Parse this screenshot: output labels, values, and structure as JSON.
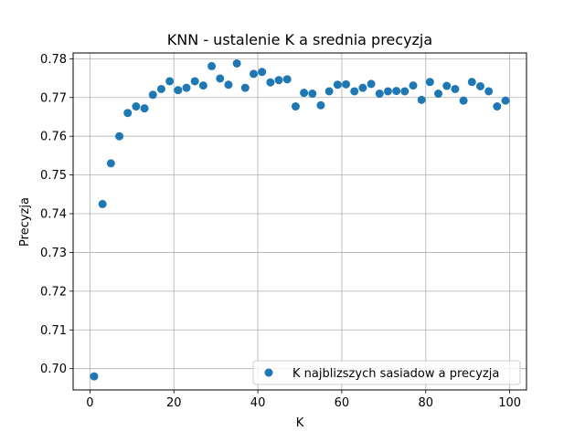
{
  "chart_data": {
    "type": "scatter",
    "title": "KNN - ustalenie K a srednia precyzja",
    "xlabel": "K",
    "ylabel": "Precyzja",
    "xlim": [
      -4,
      104
    ],
    "ylim": [
      0.6945,
      0.7815
    ],
    "xticks": [
      0,
      20,
      40,
      60,
      80,
      100
    ],
    "xtick_labels": [
      "0",
      "20",
      "40",
      "60",
      "80",
      "100"
    ],
    "yticks": [
      0.7,
      0.71,
      0.72,
      0.73,
      0.74,
      0.75,
      0.76,
      0.77,
      0.78
    ],
    "ytick_labels": [
      "0.70",
      "0.71",
      "0.72",
      "0.73",
      "0.74",
      "0.75",
      "0.76",
      "0.77",
      "0.78"
    ],
    "grid": true,
    "legend_position": "lower-right",
    "marker_color": "#1f77b4",
    "series": [
      {
        "name": "K najblizszych sasiadow a precyzja",
        "x": [
          1,
          3,
          5,
          7,
          9,
          11,
          13,
          15,
          17,
          19,
          21,
          23,
          25,
          27,
          29,
          31,
          33,
          35,
          37,
          39,
          41,
          43,
          45,
          47,
          49,
          51,
          53,
          55,
          57,
          59,
          61,
          63,
          65,
          67,
          69,
          71,
          73,
          75,
          77,
          79,
          81,
          83,
          85,
          87,
          89,
          91,
          93,
          95,
          97,
          99
        ],
        "y": [
          0.698,
          0.7425,
          0.753,
          0.76,
          0.766,
          0.7677,
          0.7672,
          0.7707,
          0.7722,
          0.7742,
          0.7719,
          0.7725,
          0.7742,
          0.7731,
          0.7781,
          0.7749,
          0.7733,
          0.7788,
          0.7725,
          0.7761,
          0.7766,
          0.7739,
          0.7745,
          0.7747,
          0.7677,
          0.7712,
          0.771,
          0.768,
          0.7716,
          0.7733,
          0.7734,
          0.7716,
          0.7725,
          0.7735,
          0.771,
          0.7716,
          0.7717,
          0.7716,
          0.7731,
          0.7694,
          0.774,
          0.771,
          0.773,
          0.7722,
          0.7692,
          0.774,
          0.7729,
          0.7716,
          0.7677,
          0.7692
        ]
      }
    ]
  }
}
